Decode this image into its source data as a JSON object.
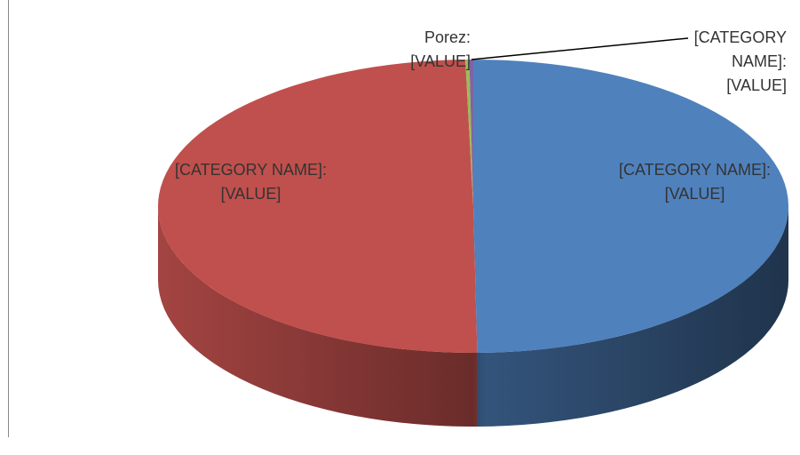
{
  "chart_data": {
    "type": "pie3d",
    "labels": [
      "[CATEGORY NAME]: [VALUE]",
      "[CATEGORY NAME]: [VALUE]",
      "Porez: [VALUE]",
      "[CATEGORY NAME]: [VALUE]"
    ],
    "values": [
      49.8,
      49.8,
      0.2,
      0.2
    ],
    "colors": [
      "#4f81bd",
      "#c0504d",
      "#9bbb59",
      "#8064a2"
    ]
  }
}
